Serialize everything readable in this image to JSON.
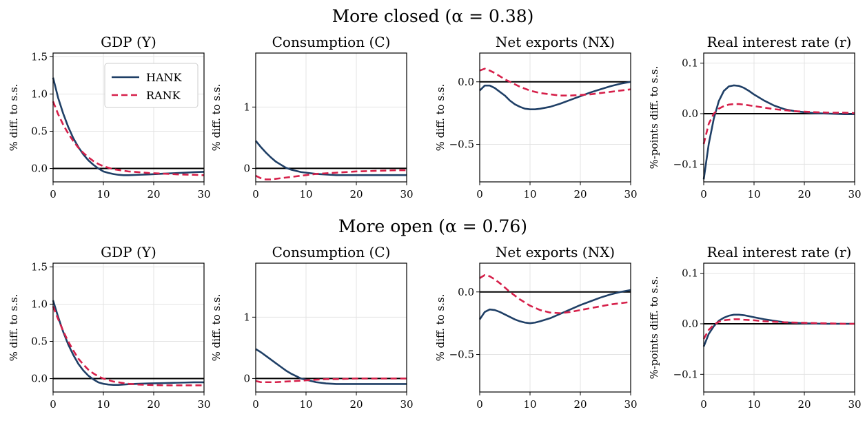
{
  "figure": {
    "row_titles": [
      "More closed (α = 0.38)",
      "More open (α = 0.76)"
    ],
    "legend": [
      "HANK",
      "RANK"
    ],
    "colors": {
      "HANK": "#1f3f66",
      "RANK": "#d6204a",
      "zero_line": "#000000",
      "grid": "#e3e3e3"
    }
  },
  "chart_data": [
    {
      "type": "line",
      "title": "GDP (Y)",
      "ylabel": "% diff. to s.s.",
      "xlim": [
        0,
        30
      ],
      "ylim": [
        -0.18,
        1.55
      ],
      "xticks": [
        0,
        10,
        20,
        30
      ],
      "yticks": [
        0.0,
        0.5,
        1.0,
        1.5
      ],
      "ytick_labels": [
        "0.0",
        "0.5",
        "1.0",
        "1.5"
      ],
      "grid": true,
      "legend": "top-right",
      "series": [
        {
          "name": "HANK",
          "style": "solid",
          "x": [
            0,
            1,
            2,
            3,
            4,
            5,
            6,
            7,
            8,
            9,
            10,
            11,
            12,
            13,
            14,
            15,
            17,
            19,
            22,
            25,
            28,
            30
          ],
          "y": [
            1.22,
            0.95,
            0.74,
            0.56,
            0.41,
            0.29,
            0.19,
            0.11,
            0.05,
            0.0,
            -0.04,
            -0.06,
            -0.075,
            -0.085,
            -0.09,
            -0.09,
            -0.085,
            -0.08,
            -0.07,
            -0.06,
            -0.05,
            -0.045
          ]
        },
        {
          "name": "RANK",
          "style": "dashed",
          "x": [
            0,
            1,
            2,
            3,
            4,
            5,
            6,
            7,
            8,
            9,
            10,
            11,
            12,
            13,
            14,
            15,
            17,
            19,
            22,
            25,
            28,
            30
          ],
          "y": [
            0.9,
            0.73,
            0.59,
            0.47,
            0.37,
            0.28,
            0.21,
            0.15,
            0.1,
            0.06,
            0.03,
            0.01,
            -0.01,
            -0.02,
            -0.03,
            -0.04,
            -0.05,
            -0.06,
            -0.07,
            -0.08,
            -0.085,
            -0.09
          ]
        }
      ]
    },
    {
      "type": "line",
      "title": "Consumption (C)",
      "ylabel": "% diff. to s.s.",
      "xlim": [
        0,
        30
      ],
      "ylim": [
        -0.22,
        1.88
      ],
      "xticks": [
        0,
        10,
        20,
        30
      ],
      "yticks": [
        0,
        1
      ],
      "ytick_labels": [
        "0",
        "1"
      ],
      "grid": true,
      "series": [
        {
          "name": "HANK",
          "style": "solid",
          "x": [
            0,
            1,
            2,
            3,
            4,
            5,
            6,
            7,
            8,
            9,
            10,
            12,
            14,
            16,
            18,
            20,
            24,
            28,
            30
          ],
          "y": [
            0.45,
            0.35,
            0.26,
            0.18,
            0.11,
            0.06,
            0.01,
            -0.02,
            -0.04,
            -0.06,
            -0.07,
            -0.09,
            -0.1,
            -0.11,
            -0.11,
            -0.11,
            -0.11,
            -0.11,
            -0.11
          ]
        },
        {
          "name": "RANK",
          "style": "dashed",
          "x": [
            0,
            1,
            2,
            3,
            4,
            6,
            8,
            10,
            12,
            14,
            16,
            20,
            24,
            28,
            30
          ],
          "y": [
            -0.12,
            -0.16,
            -0.18,
            -0.18,
            -0.17,
            -0.15,
            -0.13,
            -0.11,
            -0.09,
            -0.08,
            -0.07,
            -0.05,
            -0.04,
            -0.03,
            -0.03
          ]
        }
      ]
    },
    {
      "type": "line",
      "title": "Net exports (NX)",
      "ylabel": "% diff. to s.s.",
      "xlim": [
        0,
        30
      ],
      "ylim": [
        -0.8,
        0.23
      ],
      "xticks": [
        0,
        10,
        20,
        30
      ],
      "yticks": [
        0.0,
        -0.5
      ],
      "ytick_labels": [
        "0.0",
        "−0.5"
      ],
      "grid": true,
      "series": [
        {
          "name": "HANK",
          "style": "solid",
          "x": [
            0,
            1,
            2,
            3,
            4,
            5,
            6,
            7,
            8,
            9,
            10,
            11,
            12,
            14,
            16,
            18,
            20,
            22,
            24,
            26,
            28,
            30
          ],
          "y": [
            -0.07,
            -0.03,
            -0.03,
            -0.05,
            -0.08,
            -0.11,
            -0.15,
            -0.18,
            -0.2,
            -0.215,
            -0.22,
            -0.22,
            -0.215,
            -0.2,
            -0.175,
            -0.145,
            -0.115,
            -0.085,
            -0.06,
            -0.035,
            -0.015,
            0.0
          ]
        },
        {
          "name": "RANK",
          "style": "dashed",
          "x": [
            0,
            1,
            2,
            3,
            4,
            5,
            6,
            7,
            8,
            10,
            12,
            14,
            16,
            18,
            20,
            22,
            24,
            26,
            28,
            30
          ],
          "y": [
            0.09,
            0.105,
            0.09,
            0.07,
            0.045,
            0.02,
            0.0,
            -0.02,
            -0.04,
            -0.07,
            -0.09,
            -0.1,
            -0.11,
            -0.11,
            -0.105,
            -0.1,
            -0.09,
            -0.08,
            -0.07,
            -0.06
          ]
        }
      ]
    },
    {
      "type": "line",
      "title": "Real interest rate (r)",
      "ylabel": "%-points diff. to s.s.",
      "xlim": [
        0,
        30
      ],
      "ylim": [
        -0.135,
        0.12
      ],
      "xticks": [
        0,
        10,
        20,
        30
      ],
      "yticks": [
        0.1,
        0.0,
        -0.1
      ],
      "ytick_labels": [
        "0.1",
        "0.0",
        "−0.1"
      ],
      "grid": true,
      "series": [
        {
          "name": "HANK",
          "style": "solid",
          "x": [
            0,
            1,
            2,
            3,
            4,
            5,
            6,
            7,
            8,
            9,
            10,
            12,
            14,
            16,
            18,
            20,
            22,
            25,
            28,
            30
          ],
          "y": [
            -0.13,
            -0.06,
            -0.01,
            0.025,
            0.045,
            0.054,
            0.056,
            0.055,
            0.051,
            0.045,
            0.038,
            0.026,
            0.016,
            0.009,
            0.005,
            0.003,
            0.001,
            0.0,
            -0.001,
            -0.001
          ]
        },
        {
          "name": "RANK",
          "style": "dashed",
          "x": [
            0,
            1,
            2,
            3,
            4,
            5,
            6,
            7,
            8,
            10,
            12,
            14,
            16,
            18,
            20,
            22,
            25,
            28,
            30
          ],
          "y": [
            -0.06,
            -0.02,
            0.0,
            0.01,
            0.015,
            0.018,
            0.019,
            0.019,
            0.018,
            0.015,
            0.012,
            0.009,
            0.007,
            0.005,
            0.004,
            0.003,
            0.002,
            0.002,
            0.001
          ]
        }
      ]
    },
    {
      "type": "line",
      "title": "GDP (Y)",
      "ylabel": "% diff. to s.s.",
      "xlim": [
        0,
        30
      ],
      "ylim": [
        -0.18,
        1.55
      ],
      "xticks": [
        0,
        10,
        20,
        30
      ],
      "yticks": [
        0.0,
        0.5,
        1.0,
        1.5
      ],
      "ytick_labels": [
        "0.0",
        "0.5",
        "1.0",
        "1.5"
      ],
      "grid": true,
      "series": [
        {
          "name": "HANK",
          "style": "solid",
          "x": [
            0,
            1,
            2,
            3,
            4,
            5,
            6,
            7,
            8,
            9,
            10,
            11,
            12,
            13,
            14,
            15,
            17,
            19,
            22,
            25,
            28,
            30
          ],
          "y": [
            1.05,
            0.83,
            0.63,
            0.46,
            0.32,
            0.2,
            0.11,
            0.04,
            -0.01,
            -0.05,
            -0.07,
            -0.08,
            -0.085,
            -0.085,
            -0.08,
            -0.075,
            -0.07,
            -0.065,
            -0.06,
            -0.055,
            -0.05,
            -0.05
          ]
        },
        {
          "name": "RANK",
          "style": "dashed",
          "x": [
            0,
            1,
            2,
            3,
            4,
            5,
            6,
            7,
            8,
            9,
            10,
            11,
            12,
            13,
            14,
            15,
            17,
            19,
            22,
            25,
            28,
            30
          ],
          "y": [
            0.97,
            0.8,
            0.64,
            0.5,
            0.38,
            0.27,
            0.19,
            0.12,
            0.07,
            0.03,
            0.0,
            -0.02,
            -0.04,
            -0.05,
            -0.06,
            -0.07,
            -0.08,
            -0.085,
            -0.09,
            -0.09,
            -0.09,
            -0.09
          ]
        }
      ]
    },
    {
      "type": "line",
      "title": "Consumption (C)",
      "ylabel": "% diff. to s.s.",
      "xlim": [
        0,
        30
      ],
      "ylim": [
        -0.22,
        1.88
      ],
      "xticks": [
        0,
        10,
        20,
        30
      ],
      "yticks": [
        0,
        1
      ],
      "ytick_labels": [
        "0",
        "1"
      ],
      "grid": true,
      "series": [
        {
          "name": "HANK",
          "style": "solid",
          "x": [
            0,
            1,
            2,
            3,
            4,
            5,
            6,
            7,
            8,
            9,
            10,
            12,
            14,
            16,
            18,
            20,
            24,
            28,
            30
          ],
          "y": [
            0.48,
            0.43,
            0.37,
            0.31,
            0.25,
            0.19,
            0.13,
            0.08,
            0.04,
            0.0,
            -0.02,
            -0.06,
            -0.08,
            -0.09,
            -0.09,
            -0.09,
            -0.09,
            -0.09,
            -0.09
          ]
        },
        {
          "name": "RANK",
          "style": "dashed",
          "x": [
            0,
            1,
            2,
            4,
            6,
            8,
            10,
            12,
            14,
            16,
            20,
            24,
            28,
            30
          ],
          "y": [
            -0.04,
            -0.06,
            -0.06,
            -0.06,
            -0.05,
            -0.04,
            -0.03,
            -0.02,
            -0.01,
            -0.01,
            0.0,
            0.0,
            0.0,
            0.0
          ]
        }
      ]
    },
    {
      "type": "line",
      "title": "Net exports (NX)",
      "ylabel": "% diff. to s.s.",
      "xlim": [
        0,
        30
      ],
      "ylim": [
        -0.8,
        0.23
      ],
      "xticks": [
        0,
        10,
        20,
        30
      ],
      "yticks": [
        0.0,
        -0.5
      ],
      "ytick_labels": [
        "0.0",
        "−0.5"
      ],
      "grid": true,
      "series": [
        {
          "name": "HANK",
          "style": "solid",
          "x": [
            0,
            1,
            2,
            3,
            4,
            5,
            6,
            7,
            8,
            9,
            10,
            11,
            12,
            14,
            16,
            18,
            20,
            22,
            24,
            26,
            28,
            30
          ],
          "y": [
            -0.22,
            -0.16,
            -0.14,
            -0.145,
            -0.16,
            -0.18,
            -0.2,
            -0.22,
            -0.235,
            -0.245,
            -0.25,
            -0.245,
            -0.235,
            -0.21,
            -0.175,
            -0.14,
            -0.105,
            -0.075,
            -0.045,
            -0.02,
            0.0,
            0.015
          ]
        },
        {
          "name": "RANK",
          "style": "dashed",
          "x": [
            0,
            1,
            2,
            3,
            4,
            5,
            6,
            7,
            8,
            10,
            12,
            14,
            16,
            18,
            20,
            22,
            24,
            26,
            28,
            30
          ],
          "y": [
            0.11,
            0.135,
            0.125,
            0.1,
            0.07,
            0.035,
            0.0,
            -0.03,
            -0.06,
            -0.11,
            -0.145,
            -0.165,
            -0.17,
            -0.16,
            -0.145,
            -0.13,
            -0.115,
            -0.1,
            -0.09,
            -0.08
          ]
        }
      ]
    },
    {
      "type": "line",
      "title": "Real interest rate (r)",
      "ylabel": "%-points diff. to s.s.",
      "xlim": [
        0,
        30
      ],
      "ylim": [
        -0.135,
        0.12
      ],
      "xticks": [
        0,
        10,
        20,
        30
      ],
      "yticks": [
        0.1,
        0.0,
        -0.1
      ],
      "ytick_labels": [
        "0.1",
        "0.0",
        "−0.1"
      ],
      "grid": true,
      "series": [
        {
          "name": "HANK",
          "style": "solid",
          "x": [
            0,
            1,
            2,
            3,
            4,
            5,
            6,
            7,
            8,
            9,
            10,
            12,
            14,
            16,
            18,
            20,
            24,
            28,
            30
          ],
          "y": [
            -0.045,
            -0.02,
            -0.005,
            0.006,
            0.012,
            0.016,
            0.018,
            0.018,
            0.017,
            0.015,
            0.013,
            0.009,
            0.006,
            0.003,
            0.002,
            0.001,
            0.0,
            0.0,
            0.0
          ]
        },
        {
          "name": "RANK",
          "style": "dashed",
          "x": [
            0,
            1,
            2,
            3,
            4,
            5,
            6,
            7,
            8,
            10,
            12,
            14,
            16,
            20,
            24,
            28,
            30
          ],
          "y": [
            -0.03,
            -0.012,
            -0.002,
            0.004,
            0.007,
            0.008,
            0.009,
            0.009,
            0.008,
            0.007,
            0.005,
            0.004,
            0.003,
            0.002,
            0.001,
            0.0,
            0.0
          ]
        }
      ]
    }
  ]
}
